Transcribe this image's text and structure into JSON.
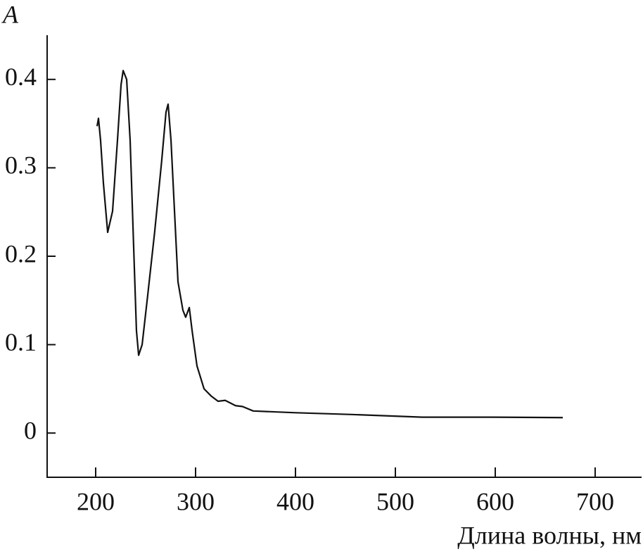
{
  "chart_data": {
    "type": "line",
    "y_label": "A",
    "x_label": "Длина волны, нм",
    "xlim": [
      151.4,
      746.5
    ],
    "ylim": [
      -0.05,
      0.45
    ],
    "xticks": [
      200,
      300,
      400,
      500,
      600,
      700
    ],
    "yticks": [
      0,
      0.1,
      0.2,
      0.3,
      0.4
    ],
    "series": [
      {
        "color": "#111111",
        "x": [
          201.4,
          202.8,
          204.9,
          207.7,
          212,
          216.9,
          221.8,
          225.4,
          227.5,
          231,
          234.5,
          238,
          240.8,
          243,
          246.5,
          252,
          259,
          266,
          270.4,
          272.5,
          275.4,
          278.9,
          282.4,
          287.3,
          290.1,
          293.7,
          296.5,
          301.4,
          308.5,
          315.5,
          322.5,
          329.6,
          340,
          347,
          357.7,
          400,
          456,
          527,
          597,
          667.6
        ],
        "values": [
          0.347,
          0.356,
          0.331,
          0.283,
          0.227,
          0.251,
          0.331,
          0.394,
          0.41,
          0.4,
          0.331,
          0.211,
          0.116,
          0.088,
          0.1,
          0.155,
          0.227,
          0.307,
          0.363,
          0.372,
          0.331,
          0.251,
          0.171,
          0.139,
          0.131,
          0.142,
          0.116,
          0.076,
          0.05,
          0.042,
          0.036,
          0.037,
          0.031,
          0.03,
          0.025,
          0.023,
          0.021,
          0.018,
          0.018,
          0.0175
        ]
      }
    ]
  }
}
